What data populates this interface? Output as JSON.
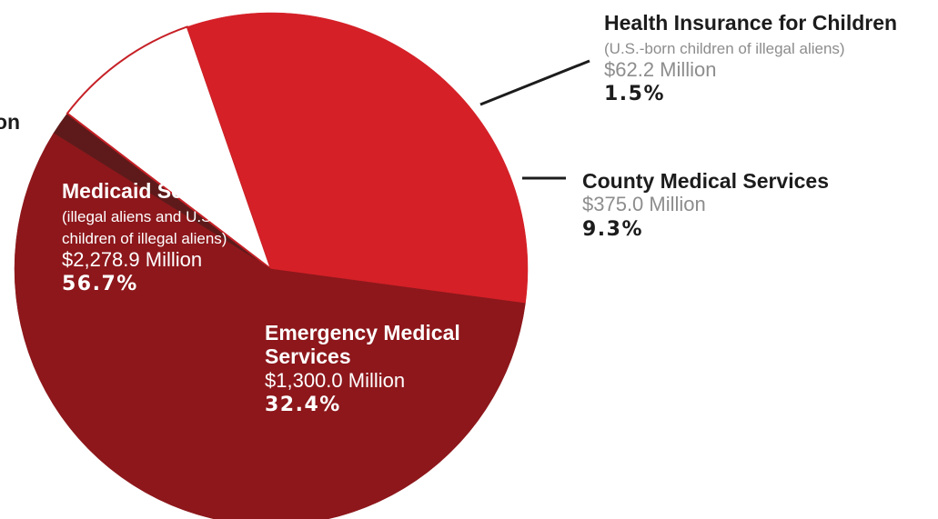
{
  "chart_data": {
    "type": "pie",
    "slices": [
      {
        "title": "Health Insurance for Children",
        "note": "(U.S.-born children of illegal aliens)",
        "amount": "$62.2 Million",
        "percent_label": "1.5%",
        "value": 62.2,
        "percent": 1.5,
        "color": "#5e1a1a"
      },
      {
        "title": "County Medical Services",
        "note": "",
        "amount": "$375.0 Million",
        "percent_label": "9.3%",
        "value": 375.0,
        "percent": 9.3,
        "color": "#ffffff"
      },
      {
        "title": "Emergency Medical Services",
        "note": "",
        "amount": "$1,300.0 Million",
        "percent_label": "32.4%",
        "value": 1300.0,
        "percent": 32.4,
        "color": "#d52027"
      },
      {
        "title": "Medicaid Services",
        "note": "(illegal aliens and U.S.-born children of illegal aliens)",
        "amount": "$2,278.9 Million",
        "percent_label": "56.7%",
        "value": 2278.9,
        "percent": 56.7,
        "color": "#8d171b"
      }
    ]
  },
  "labels": {
    "truncated_left_text": "on",
    "health": {
      "title": "Health Insurance for Children",
      "note": "(U.S.-born children of illegal aliens)",
      "amount": "$62.2 Million",
      "percent": "1.5%"
    },
    "county": {
      "title": "County Medical Services",
      "amount": "$375.0 Million",
      "percent": "9.3%"
    },
    "medicaid": {
      "title": "Medicaid Services",
      "note_line1": "(illegal aliens and U.S.-born",
      "note_line2": "children of illegal aliens)",
      "amount": "$2,278.9 Million",
      "percent": "56.7%"
    },
    "emergency": {
      "title_line1": "Emergency Medical",
      "title_line2": "Services",
      "amount": "$1,300.0 Million",
      "percent": "32.4%"
    }
  }
}
